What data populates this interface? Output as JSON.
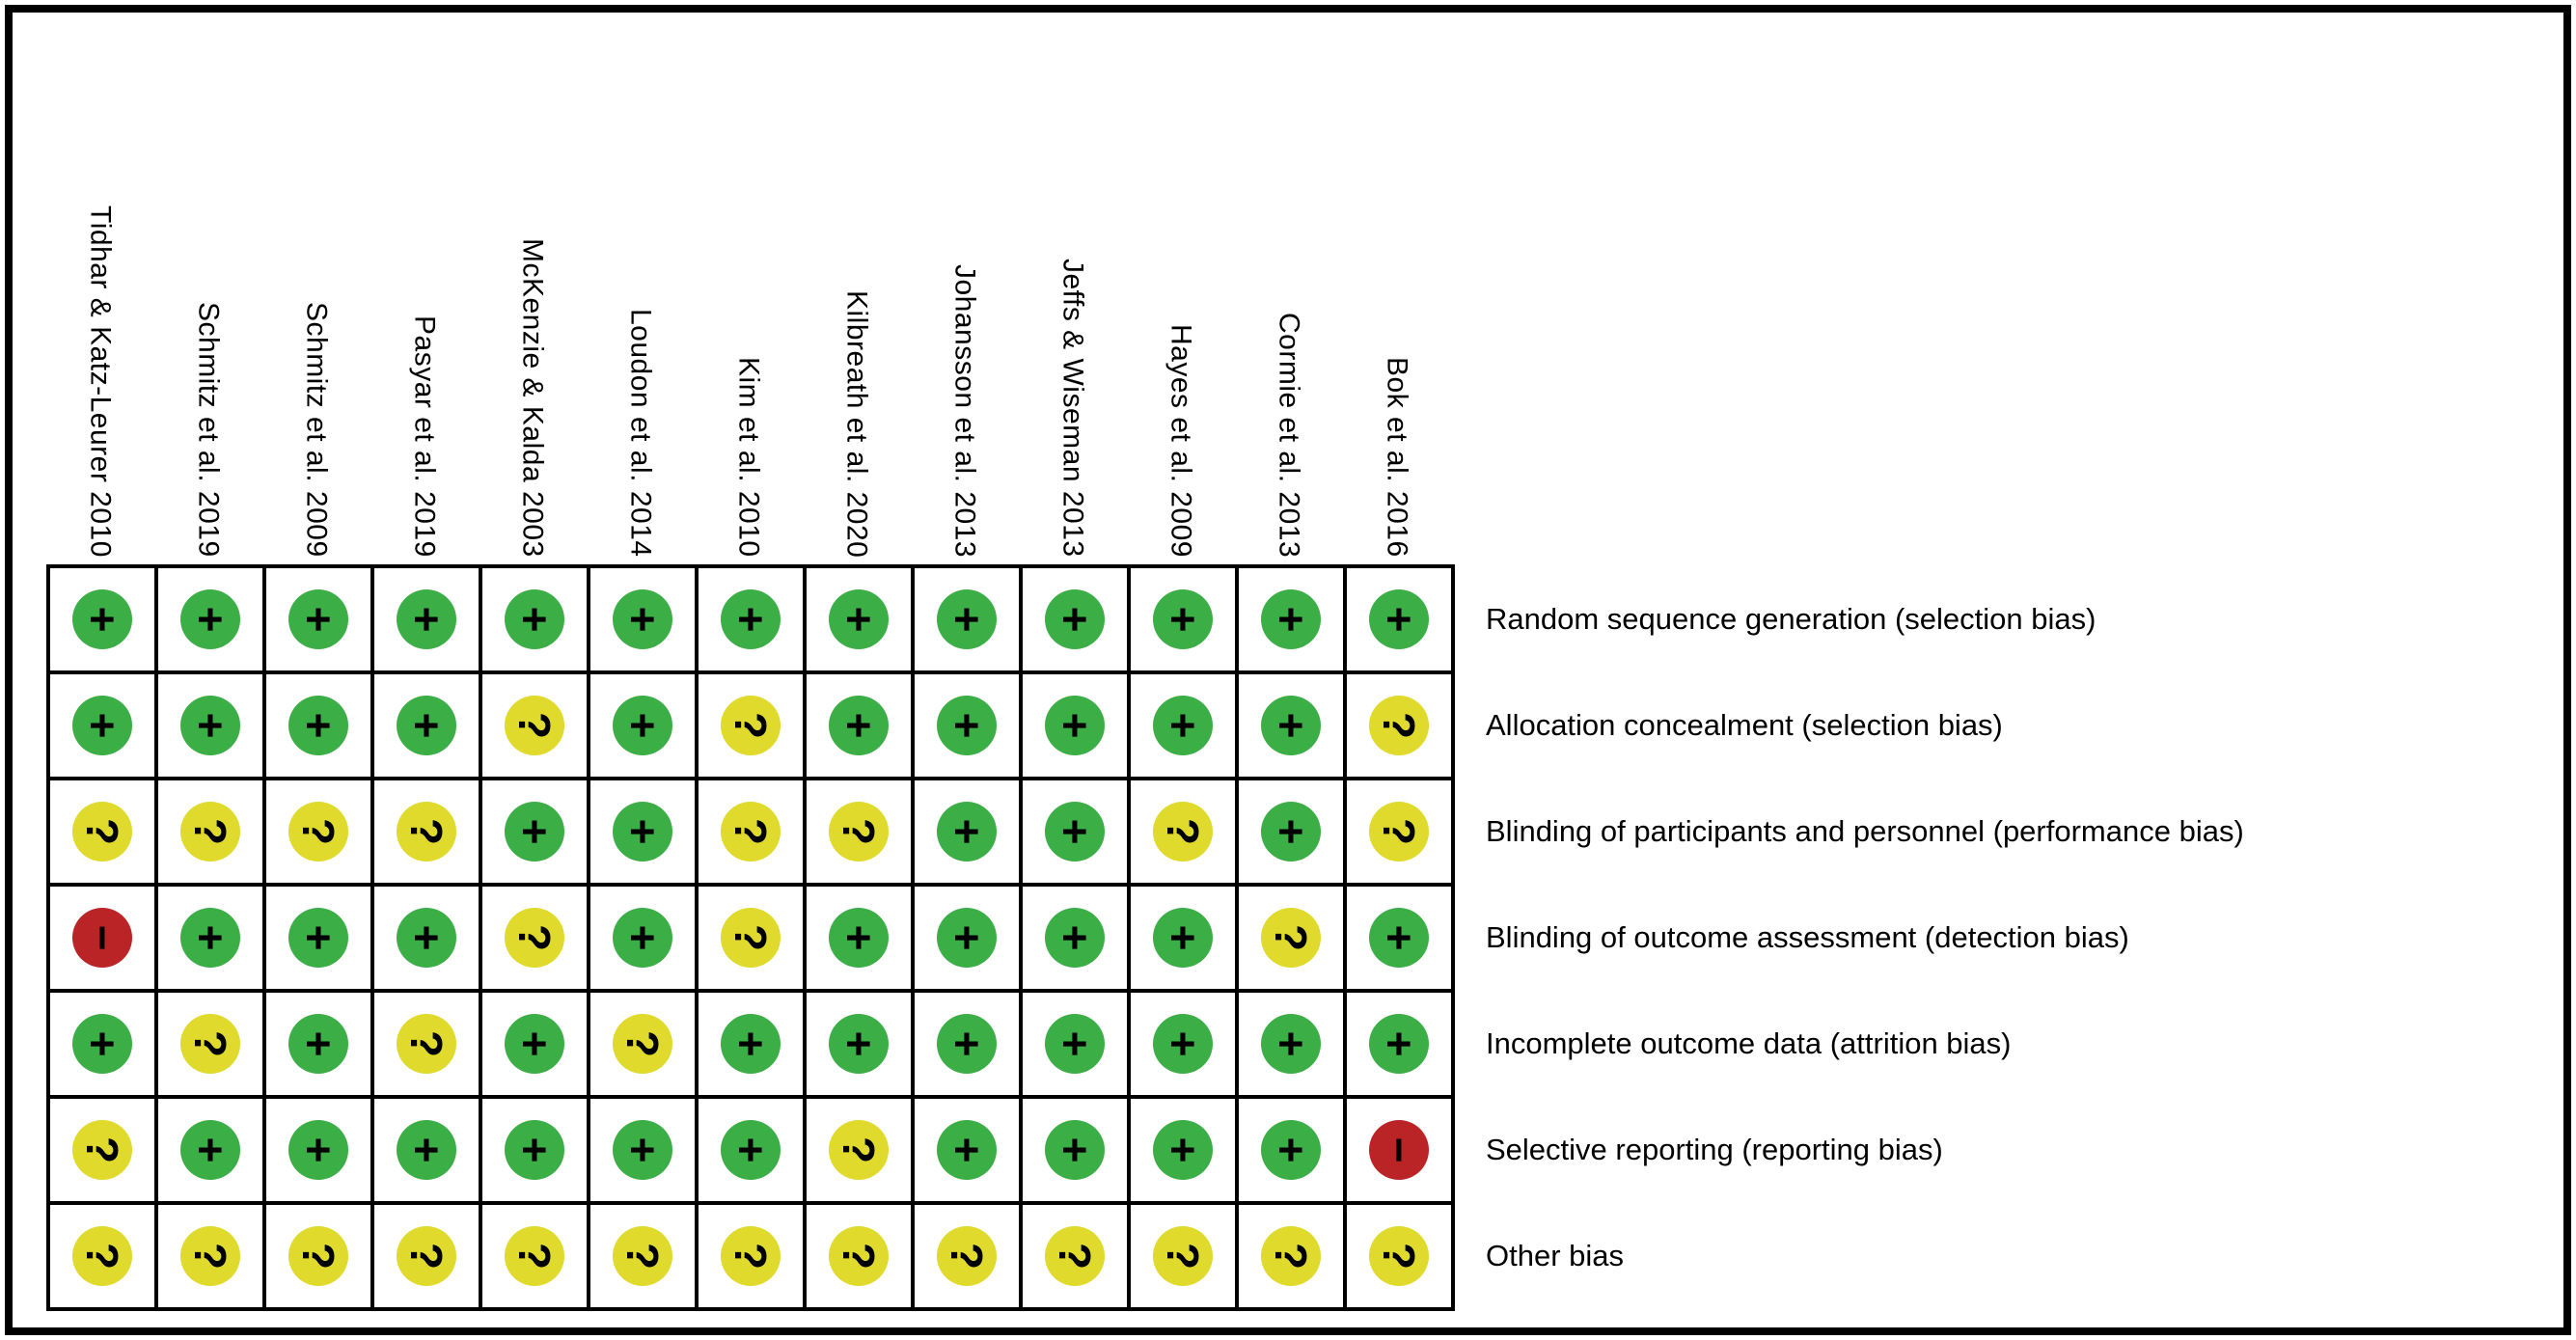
{
  "figure": {
    "background": "#FFFFFF",
    "border_color": "#000000",
    "judgment_colors": {
      "low": "#3CAE46",
      "unclear": "#E0DA2C",
      "high": "#BB2426"
    },
    "judgment_symbols": {
      "low": "+",
      "unclear": "?",
      "high": "−"
    }
  },
  "chart_data": {
    "type": "heatmap",
    "studies": [
      "Tidhar & Katz-Leurer 2010",
      "Schmitz et al. 2019",
      "Schmitz et al. 2009",
      "Pasyar et al. 2019",
      "McKenzie & Kalda 2003",
      "Loudon et al. 2014",
      "Kim et al. 2010",
      "Kilbreath et al. 2020",
      "Johansson et al. 2013",
      "Jeffs & Wiseman 2013",
      "Hayes et al. 2009",
      "Cormie et al. 2013",
      "Bok et al. 2016"
    ],
    "criteria": [
      "Random sequence generation (selection bias)",
      "Allocation concealment (selection bias)",
      "Blinding of participants and personnel (performance bias)",
      "Blinding of outcome assessment (detection bias)",
      "Incomplete outcome data (attrition bias)",
      "Selective reporting (reporting bias)",
      "Other bias"
    ],
    "matrix": [
      [
        "low",
        "low",
        "low",
        "low",
        "low",
        "low",
        "low",
        "low",
        "low",
        "low",
        "low",
        "low",
        "low"
      ],
      [
        "low",
        "low",
        "low",
        "low",
        "unclear",
        "low",
        "unclear",
        "low",
        "low",
        "low",
        "low",
        "low",
        "unclear"
      ],
      [
        "unclear",
        "unclear",
        "unclear",
        "unclear",
        "low",
        "low",
        "unclear",
        "unclear",
        "low",
        "low",
        "unclear",
        "low",
        "unclear"
      ],
      [
        "high",
        "low",
        "low",
        "low",
        "unclear",
        "low",
        "unclear",
        "low",
        "low",
        "low",
        "low",
        "unclear",
        "low"
      ],
      [
        "low",
        "unclear",
        "low",
        "unclear",
        "low",
        "unclear",
        "low",
        "low",
        "low",
        "low",
        "low",
        "low",
        "low"
      ],
      [
        "unclear",
        "low",
        "low",
        "low",
        "low",
        "low",
        "low",
        "unclear",
        "low",
        "low",
        "low",
        "low",
        "high"
      ],
      [
        "unclear",
        "unclear",
        "unclear",
        "unclear",
        "unclear",
        "unclear",
        "unclear",
        "unclear",
        "unclear",
        "unclear",
        "unclear",
        "unclear",
        "unclear"
      ]
    ]
  }
}
